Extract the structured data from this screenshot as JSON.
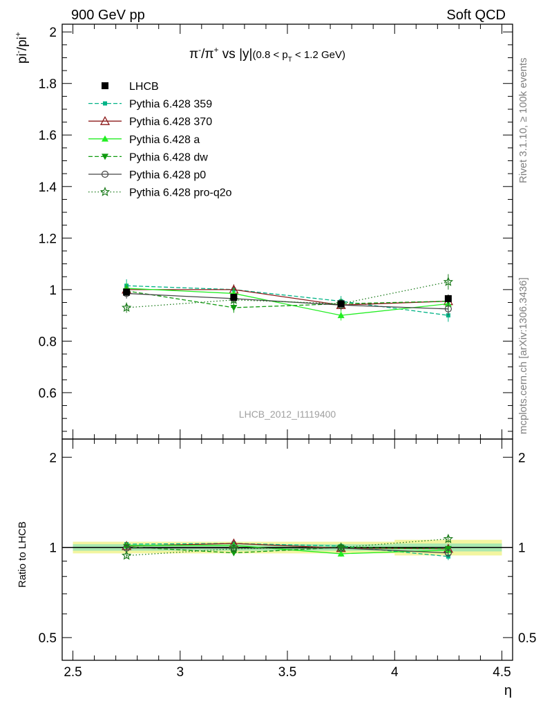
{
  "header": {
    "left": "900 GeV pp",
    "right": "Soft QCD"
  },
  "side_labels": {
    "rivet": "Rivet 3.1.10, ≥ 100k events",
    "mcplots": "mcplots.cern.ch [arXiv:1306.3436]"
  },
  "plot_title": {
    "pi": "π",
    "minus": "-",
    "slash": "/π",
    "plus": "+",
    "vs": " vs |y|",
    "range_open": "(0.8 < p",
    "range_sub": "T",
    "range_close": " < 1.2 GeV)"
  },
  "watermark": "LHCB_2012_I1119400",
  "chart_data": {
    "type": "line",
    "x": [
      2.75,
      3.25,
      3.75,
      4.25
    ],
    "xlabel": "η",
    "xlim": [
      2.45,
      4.55
    ],
    "xticks": [
      {
        "v": 2.5,
        "label": "2.5"
      },
      {
        "v": 3,
        "label": "3"
      },
      {
        "v": 3.5,
        "label": "3.5"
      },
      {
        "v": 4,
        "label": "4"
      },
      {
        "v": 4.5,
        "label": "4.5"
      }
    ],
    "main": {
      "ylabel": {
        "base": "pi",
        "sup1": "-",
        "mid": "/pi",
        "sup2": "+"
      },
      "ylim": [
        0.42,
        2.03
      ],
      "yticks": [
        {
          "v": 0.6,
          "label": "0.6"
        },
        {
          "v": 0.8,
          "label": "0.8"
        },
        {
          "v": 1,
          "label": "1"
        },
        {
          "v": 1.2,
          "label": "1.2"
        },
        {
          "v": 1.4,
          "label": "1.4"
        },
        {
          "v": 1.6,
          "label": "1.6"
        },
        {
          "v": 1.8,
          "label": "1.8"
        },
        {
          "v": 2,
          "label": "2"
        }
      ]
    },
    "ratio": {
      "ylabel": "Ratio to LHCB",
      "log": true,
      "ylim": [
        0.42,
        2.3
      ],
      "yticks": [
        {
          "v": 0.5,
          "label": "0.5"
        },
        {
          "v": 1,
          "label": "1"
        },
        {
          "v": 2,
          "label": "2"
        }
      ],
      "band_inner": [
        0.025,
        0.025,
        0.025,
        0.03
      ],
      "band_outer": [
        0.045,
        0.045,
        0.045,
        0.06
      ]
    },
    "data": {
      "name": "LHCB",
      "values": [
        0.99,
        0.97,
        0.945,
        0.965
      ],
      "errors": [
        0.012,
        0.012,
        0.012,
        0.015
      ]
    },
    "series": [
      {
        "name": "Pythia 6.428 359",
        "color": "#00b386",
        "dash": "6,3",
        "marker": "square-small",
        "values": [
          1.015,
          1.0,
          0.955,
          0.9
        ],
        "errors": [
          0.025,
          0.02,
          0.02,
          0.025
        ]
      },
      {
        "name": "Pythia 6.428 370",
        "color": "#8b1a1a",
        "dash": "",
        "marker": "triangle-open",
        "values": [
          1.0,
          1.0,
          0.94,
          0.955
        ],
        "errors": [
          0.02,
          0.02,
          0.02,
          0.025
        ]
      },
      {
        "name": "Pythia 6.428 a",
        "color": "#22ee22",
        "dash": "",
        "marker": "triangle-up",
        "values": [
          1.005,
          0.985,
          0.9,
          0.945
        ],
        "errors": [
          0.02,
          0.02,
          0.02,
          0.025
        ]
      },
      {
        "name": "Pythia 6.428 dw",
        "color": "#0f9a0f",
        "dash": "6,3",
        "marker": "triangle-down",
        "values": [
          0.995,
          0.93,
          0.945,
          0.955
        ],
        "errors": [
          0.02,
          0.02,
          0.02,
          0.025
        ]
      },
      {
        "name": "Pythia 6.428 p0",
        "color": "#444444",
        "dash": "",
        "marker": "circle-open",
        "values": [
          0.985,
          0.965,
          0.94,
          0.925
        ],
        "errors": [
          0.02,
          0.02,
          0.02,
          0.025
        ]
      },
      {
        "name": "Pythia 6.428 pro-q2o",
        "color": "#1a7a1a",
        "dash": "1.5,3",
        "marker": "star-open",
        "values": [
          0.93,
          0.96,
          0.945,
          1.03
        ],
        "errors": [
          0.02,
          0.02,
          0.02,
          0.03
        ]
      }
    ]
  }
}
